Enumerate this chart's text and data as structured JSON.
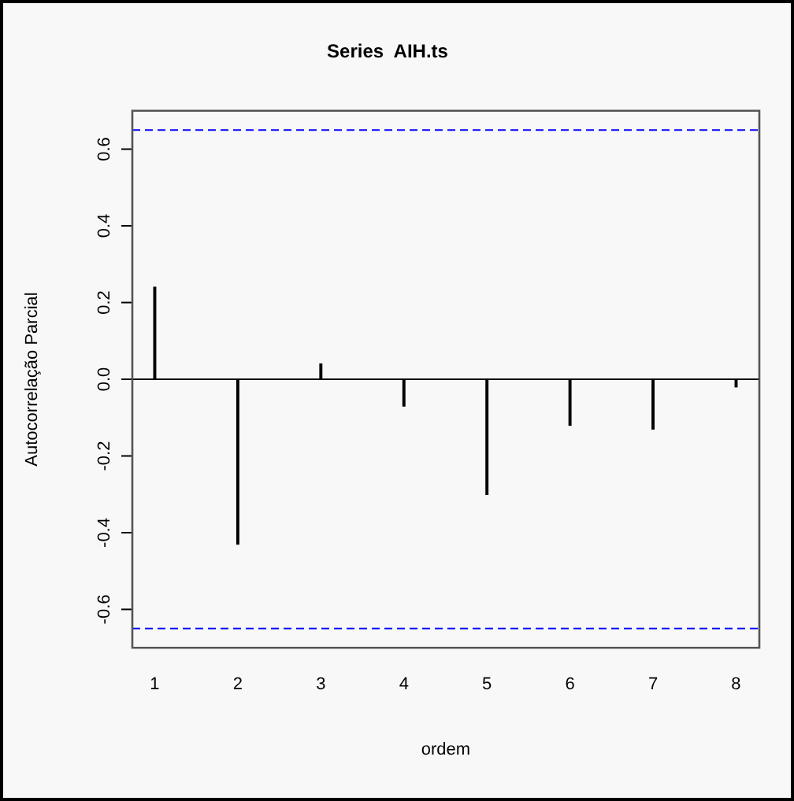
{
  "chart_data": {
    "type": "bar",
    "title": "Series  AIH.ts",
    "xlabel": "ordem",
    "ylabel": "Autocorrelação Parcial",
    "x": [
      1,
      2,
      3,
      4,
      5,
      6,
      7,
      8
    ],
    "values": [
      0.24,
      -0.43,
      0.04,
      -0.07,
      -0.3,
      -0.12,
      -0.13,
      -0.02
    ],
    "color": "#000000",
    "xlim": [
      0.73,
      8.28
    ],
    "xticks": [
      1,
      2,
      3,
      4,
      5,
      6,
      7,
      8
    ],
    "ylim": [
      -0.7,
      0.7
    ],
    "yticks": [
      -0.6,
      -0.4,
      -0.2,
      {
        "value": 0,
        "label": "0.0"
      },
      0.2,
      0.4,
      0.6
    ],
    "ref_lines": [
      {
        "axis": "y",
        "value": 0.65,
        "color": "#0000ff",
        "line_style": "dashed"
      },
      {
        "axis": "y",
        "value": -0.65,
        "color": "#0000ff",
        "line_style": "dashed"
      },
      {
        "axis": "y",
        "value": 0,
        "color": "#000000",
        "line_style": "solid"
      }
    ],
    "grid": false,
    "legend": false
  }
}
